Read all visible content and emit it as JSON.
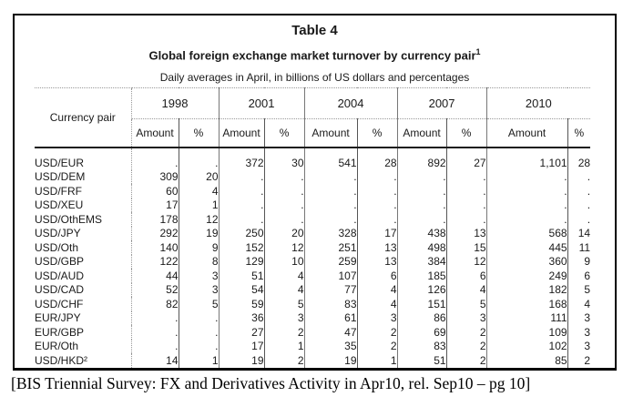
{
  "figure": {
    "title": "Table 4",
    "subtitle": "Global foreign exchange market turnover by currency pair",
    "subtitle_footnote_marker": "1",
    "unit_note": "Daily averages in April, in billions of US dollars and percentages"
  },
  "table": {
    "corner_header": "Currency pair",
    "years": [
      "1998",
      "2001",
      "2004",
      "2007",
      "2010"
    ],
    "amount_label": "Amount",
    "percent_label": "%",
    "rows": [
      {
        "pair": "USD/EUR",
        "values": [
          ".",
          ".",
          "372",
          "30",
          "541",
          "28",
          "892",
          "27",
          "1,101",
          "28"
        ]
      },
      {
        "pair": "USD/DEM",
        "values": [
          "309",
          "20",
          ".",
          ".",
          ".",
          ".",
          ".",
          ".",
          ".",
          "."
        ]
      },
      {
        "pair": "USD/FRF",
        "values": [
          "60",
          "4",
          ".",
          ".",
          ".",
          ".",
          ".",
          ".",
          ".",
          "."
        ]
      },
      {
        "pair": "USD/XEU",
        "values": [
          "17",
          "1",
          ".",
          ".",
          ".",
          ".",
          ".",
          ".",
          ".",
          "."
        ]
      },
      {
        "pair": "USD/OthEMS",
        "values": [
          "178",
          "12",
          ".",
          ".",
          ".",
          ".",
          ".",
          ".",
          ".",
          "."
        ]
      },
      {
        "pair": "USD/JPY",
        "values": [
          "292",
          "19",
          "250",
          "20",
          "328",
          "17",
          "438",
          "13",
          "568",
          "14"
        ]
      },
      {
        "pair": "USD/Oth",
        "values": [
          "140",
          "9",
          "152",
          "12",
          "251",
          "13",
          "498",
          "15",
          "445",
          "11"
        ]
      },
      {
        "pair": "USD/GBP",
        "values": [
          "122",
          "8",
          "129",
          "10",
          "259",
          "13",
          "384",
          "12",
          "360",
          "9"
        ]
      },
      {
        "pair": "USD/AUD",
        "values": [
          "44",
          "3",
          "51",
          "4",
          "107",
          "6",
          "185",
          "6",
          "249",
          "6"
        ]
      },
      {
        "pair": "USD/CAD",
        "values": [
          "52",
          "3",
          "54",
          "4",
          "77",
          "4",
          "126",
          "4",
          "182",
          "5"
        ]
      },
      {
        "pair": "USD/CHF",
        "values": [
          "82",
          "5",
          "59",
          "5",
          "83",
          "4",
          "151",
          "5",
          "168",
          "4"
        ]
      },
      {
        "pair": "EUR/JPY",
        "values": [
          ".",
          ".",
          "36",
          "3",
          "61",
          "3",
          "86",
          "3",
          "111",
          "3"
        ]
      },
      {
        "pair": "EUR/GBP",
        "values": [
          ".",
          ".",
          "27",
          "2",
          "47",
          "2",
          "69",
          "2",
          "109",
          "3"
        ]
      },
      {
        "pair": "EUR/Oth",
        "values": [
          ".",
          ".",
          "17",
          "1",
          "35",
          "2",
          "83",
          "2",
          "102",
          "3"
        ]
      },
      {
        "pair": "USD/HKD²",
        "values": [
          "14",
          "1",
          "19",
          "2",
          "19",
          "1",
          "51",
          "2",
          "85",
          "2"
        ]
      }
    ]
  },
  "caption": "[BIS Triennial Survey: FX and Derivatives Activity in Apr10, rel. Sep10 – pg 10]",
  "colors": {
    "box_border": "#000000",
    "grid_solid": "#777777",
    "grid_dotted": "#999999",
    "header_underline": "#1a1a1a",
    "text": "#1a1a1a"
  }
}
